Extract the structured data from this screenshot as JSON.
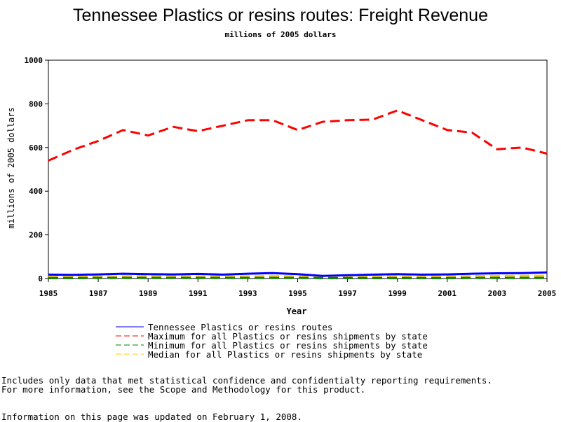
{
  "chart_data": {
    "type": "line",
    "title": "Tennessee Plastics or resins routes: Freight Revenue",
    "subtitle": "millions of 2005 dollars",
    "xlabel": "Year",
    "ylabel": "millions of 2005 dollars",
    "xlim": [
      1985,
      2005
    ],
    "ylim": [
      0,
      1000
    ],
    "x_ticks": [
      "1985",
      "1987",
      "1989",
      "1991",
      "1993",
      "1995",
      "1997",
      "1999",
      "2001",
      "2003",
      "2005"
    ],
    "y_ticks": [
      "0",
      "200",
      "400",
      "600",
      "800",
      "1000"
    ],
    "x": [
      1985,
      1986,
      1987,
      1988,
      1989,
      1990,
      1991,
      1992,
      1993,
      1994,
      1995,
      1996,
      1997,
      1998,
      1999,
      2000,
      2001,
      2002,
      2003,
      2004,
      2005
    ],
    "grid": false,
    "legend_position": "bottom",
    "series": [
      {
        "name": "Tennessee Plastics or resins routes",
        "color": "#0000ff",
        "style": "solid",
        "values": [
          18,
          17,
          19,
          22,
          20,
          19,
          21,
          18,
          22,
          25,
          20,
          12,
          15,
          18,
          20,
          18,
          19,
          22,
          24,
          25,
          28
        ]
      },
      {
        "name": "Maximum for all Plastics or resins shipments by state",
        "color": "#ff0000",
        "style": "dashed",
        "values": [
          540,
          590,
          630,
          680,
          655,
          695,
          675,
          700,
          725,
          725,
          680,
          718,
          725,
          728,
          770,
          725,
          680,
          668,
          592,
          600,
          572
        ]
      },
      {
        "name": "Minimum for all Plastics or resins shipments by state",
        "color": "#008000",
        "style": "dashed",
        "values": [
          2,
          2,
          3,
          3,
          3,
          3,
          3,
          3,
          3,
          3,
          3,
          2,
          2,
          2,
          2,
          2,
          2,
          3,
          3,
          3,
          3
        ]
      },
      {
        "name": "Median for all Plastics or resins shipments by state",
        "color": "#ffcc00",
        "style": "dashed",
        "values": [
          8,
          8,
          9,
          10,
          11,
          12,
          10,
          9,
          10,
          11,
          10,
          9,
          12,
          11,
          11,
          10,
          10,
          11,
          12,
          12,
          13
        ]
      }
    ]
  },
  "notes": {
    "line1": "Includes only data that met statistical confidence and confidentialty reporting requirements.",
    "line2": "For more information, see the Scope and Methodology for this product.",
    "updated": "Information on this page was updated on February 1, 2008."
  }
}
